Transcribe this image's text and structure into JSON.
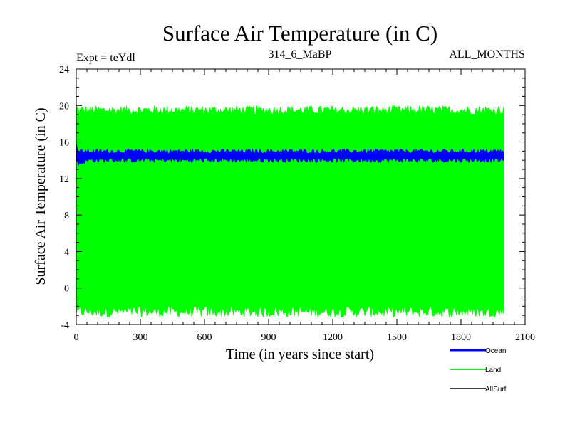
{
  "chart_data": {
    "type": "area",
    "title": "Surface Air Temperature (in C)",
    "subtitle_left": "Expt = teYdl",
    "subtitle_center": "314_6_MaBP",
    "subtitle_right": "ALL_MONTHS",
    "xlabel": "Time (in years since start)",
    "ylabel": "Surface Air Temperature (in C)",
    "xlim": [
      0,
      2100
    ],
    "ylim": [
      -4,
      24
    ],
    "xticks": [
      0,
      300,
      600,
      900,
      1200,
      1500,
      1800,
      2100
    ],
    "yticks": [
      -4,
      0,
      4,
      8,
      12,
      16,
      20,
      24
    ],
    "data_x_range": [
      0,
      2000
    ],
    "series": [
      {
        "name": "Land",
        "color": "#00ff00",
        "upper_mean": 19.5,
        "upper_spread": 0.5,
        "lower_mean": -2.6,
        "lower_spread": 0.6,
        "start_upper": 20.0,
        "start_lower": -2.8
      },
      {
        "name": "Ocean",
        "color": "#0000ff",
        "upper_mean": 15.0,
        "upper_spread": 0.25,
        "lower_mean": 14.0,
        "lower_spread": 0.25,
        "start_upper": 16.0,
        "start_lower": 14.5,
        "settle_years": 60
      },
      {
        "name": "AllSurf",
        "color": "#000000",
        "upper_mean": 14.6,
        "upper_spread": 0.1,
        "lower_mean": 14.4,
        "lower_spread": 0.1,
        "start_upper": 15.5,
        "start_lower": 14.5
      }
    ]
  }
}
